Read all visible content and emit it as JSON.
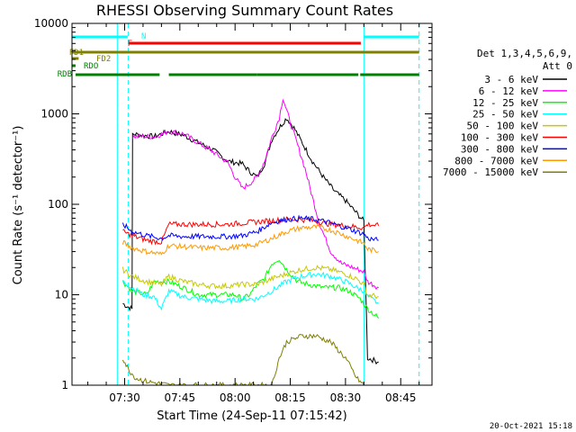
{
  "chart_data": {
    "type": "line",
    "title": "RHESSI Observing Summary Count Rates",
    "xlabel": "Start Time (24-Sep-11 07:15:42)",
    "ylabel": "Count Rate (s⁻¹ detector⁻¹)",
    "yscale": "log",
    "ylim": [
      1,
      10000
    ],
    "xlim": [
      "07:15:42",
      "08:53:30"
    ],
    "x_ticks": [
      "07:30",
      "07:45",
      "08:00",
      "08:15",
      "08:30",
      "08:45"
    ],
    "y_ticks": [
      "1",
      "10",
      "100",
      "1000",
      "10000"
    ],
    "detector_info": [
      "Det 1,3,4,5,6,9,",
      "Att 0"
    ],
    "timestamp": "20-Oct-2021 15:18",
    "series": [
      {
        "name": "3 - 6 keV",
        "color": "#000000",
        "points": [
          [
            "07:29:30",
            8
          ],
          [
            "07:30:30",
            7.5
          ],
          [
            "07:32:00",
            7
          ],
          [
            "07:32:10",
            600
          ],
          [
            "07:38:00",
            560
          ],
          [
            "07:42:00",
            640
          ],
          [
            "07:46:00",
            580
          ],
          [
            "07:50:00",
            480
          ],
          [
            "07:54:00",
            400
          ],
          [
            "07:58:00",
            300
          ],
          [
            "08:02:00",
            280
          ],
          [
            "08:04:00",
            230
          ],
          [
            "08:06:00",
            200
          ],
          [
            "08:08:00",
            280
          ],
          [
            "08:10:00",
            520
          ],
          [
            "08:12:00",
            700
          ],
          [
            "08:14:00",
            900
          ],
          [
            "08:16:00",
            700
          ],
          [
            "08:18:00",
            500
          ],
          [
            "08:21:00",
            300
          ],
          [
            "08:24:00",
            200
          ],
          [
            "08:27:00",
            140
          ],
          [
            "08:30:00",
            110
          ],
          [
            "08:33:00",
            80
          ],
          [
            "08:35:00",
            65
          ],
          [
            "08:36:00",
            2
          ],
          [
            "08:39:00",
            1.8
          ]
        ]
      },
      {
        "name": "6 - 12 keV",
        "color": "#ff00ff",
        "points": [
          [
            "07:32:10",
            560
          ],
          [
            "07:38:00",
            560
          ],
          [
            "07:42:00",
            640
          ],
          [
            "07:46:00",
            600
          ],
          [
            "07:50:00",
            480
          ],
          [
            "07:54:00",
            380
          ],
          [
            "07:58:00",
            290
          ],
          [
            "08:00:00",
            200
          ],
          [
            "08:02:00",
            150
          ],
          [
            "08:04:00",
            170
          ],
          [
            "08:06:00",
            200
          ],
          [
            "08:08:00",
            300
          ],
          [
            "08:10:00",
            550
          ],
          [
            "08:12:00",
            900
          ],
          [
            "08:13:00",
            1500
          ],
          [
            "08:15:00",
            800
          ],
          [
            "08:17:00",
            450
          ],
          [
            "08:19:00",
            250
          ],
          [
            "08:21:00",
            120
          ],
          [
            "08:23:00",
            60
          ],
          [
            "08:26:00",
            30
          ],
          [
            "08:29:00",
            22
          ],
          [
            "08:32:00",
            20
          ],
          [
            "08:35:00",
            18
          ],
          [
            "08:36:00",
            14
          ],
          [
            "08:39:00",
            12
          ]
        ]
      },
      {
        "name": "12 - 25 keV",
        "color": "#00ff00",
        "points": [
          [
            "07:29:30",
            14
          ],
          [
            "07:32:00",
            11
          ],
          [
            "07:36:00",
            10
          ],
          [
            "07:38:00",
            14
          ],
          [
            "07:42:00",
            14
          ],
          [
            "07:46:00",
            12
          ],
          [
            "07:50:00",
            10
          ],
          [
            "07:54:00",
            10
          ],
          [
            "07:58:00",
            10
          ],
          [
            "08:00:00",
            10
          ],
          [
            "08:02:00",
            9
          ],
          [
            "08:04:00",
            10
          ],
          [
            "08:06:00",
            13
          ],
          [
            "08:08:00",
            15
          ],
          [
            "08:10:00",
            22
          ],
          [
            "08:12:00",
            25
          ],
          [
            "08:14:00",
            19
          ],
          [
            "08:17:00",
            14
          ],
          [
            "08:20:00",
            13
          ],
          [
            "08:24:00",
            12
          ],
          [
            "08:28:00",
            12
          ],
          [
            "08:31:00",
            11
          ],
          [
            "08:34:00",
            9
          ],
          [
            "08:36:00",
            7
          ],
          [
            "08:39:00",
            5.5
          ]
        ]
      },
      {
        "name": "25 - 50 keV",
        "color": "#00ffff",
        "points": [
          [
            "07:29:30",
            14
          ],
          [
            "07:32:00",
            12
          ],
          [
            "07:35:00",
            10
          ],
          [
            "07:38:00",
            9.5
          ],
          [
            "07:40:00",
            7
          ],
          [
            "07:42:00",
            11
          ],
          [
            "07:46:00",
            9.5
          ],
          [
            "07:50:00",
            9
          ],
          [
            "07:54:00",
            8.5
          ],
          [
            "07:58:00",
            8.5
          ],
          [
            "08:02:00",
            9
          ],
          [
            "08:06:00",
            9
          ],
          [
            "08:10:00",
            11
          ],
          [
            "08:14:00",
            14
          ],
          [
            "08:18:00",
            16
          ],
          [
            "08:22:00",
            17
          ],
          [
            "08:26:00",
            16
          ],
          [
            "08:30:00",
            14
          ],
          [
            "08:33:00",
            12
          ],
          [
            "08:35:00",
            11
          ],
          [
            "08:36:00",
            9.5
          ],
          [
            "08:39:00",
            8
          ]
        ]
      },
      {
        "name": "50 - 100 keV",
        "color": "#c8c800",
        "points": [
          [
            "07:29:30",
            19
          ],
          [
            "07:32:00",
            16
          ],
          [
            "07:36:00",
            14
          ],
          [
            "07:40:00",
            13
          ],
          [
            "07:42:00",
            16
          ],
          [
            "07:46:00",
            14
          ],
          [
            "07:50:00",
            13
          ],
          [
            "07:54:00",
            12.5
          ],
          [
            "07:58:00",
            12.5
          ],
          [
            "08:02:00",
            13
          ],
          [
            "08:06:00",
            13
          ],
          [
            "08:10:00",
            15
          ],
          [
            "08:14:00",
            17
          ],
          [
            "08:18:00",
            19
          ],
          [
            "08:22:00",
            20
          ],
          [
            "08:26:00",
            19
          ],
          [
            "08:30:00",
            17
          ],
          [
            "08:33:00",
            15
          ],
          [
            "08:35:00",
            13
          ],
          [
            "08:36:00",
            10
          ],
          [
            "08:39:00",
            9.5
          ]
        ]
      },
      {
        "name": "100 - 300 keV",
        "color": "#ff0000",
        "points": [
          [
            "07:29:30",
            50
          ],
          [
            "07:32:00",
            45
          ],
          [
            "07:36:00",
            40
          ],
          [
            "07:40:00",
            38
          ],
          [
            "07:42:00",
            60
          ],
          [
            "07:46:00",
            60
          ],
          [
            "07:50:00",
            60
          ],
          [
            "07:54:00",
            60
          ],
          [
            "07:58:00",
            60
          ],
          [
            "08:02:00",
            62
          ],
          [
            "08:06:00",
            64
          ],
          [
            "08:10:00",
            66
          ],
          [
            "08:14:00",
            68
          ],
          [
            "08:18:00",
            68
          ],
          [
            "08:22:00",
            65
          ],
          [
            "08:26:00",
            60
          ],
          [
            "08:30:00",
            58
          ],
          [
            "08:33:00",
            56
          ],
          [
            "08:35:00",
            55
          ],
          [
            "08:36:00",
            60
          ],
          [
            "08:39:00",
            58
          ]
        ]
      },
      {
        "name": "300 - 800 keV",
        "color": "#0000ff",
        "points": [
          [
            "07:29:30",
            60
          ],
          [
            "07:32:00",
            50
          ],
          [
            "07:36:00",
            45
          ],
          [
            "07:40:00",
            42
          ],
          [
            "07:42:00",
            45
          ],
          [
            "07:46:00",
            44
          ],
          [
            "07:50:00",
            44
          ],
          [
            "07:54:00",
            44
          ],
          [
            "07:58:00",
            44
          ],
          [
            "08:02:00",
            45
          ],
          [
            "08:06:00",
            50
          ],
          [
            "08:10:00",
            63
          ],
          [
            "08:14:00",
            68
          ],
          [
            "08:18:00",
            70
          ],
          [
            "08:22:00",
            68
          ],
          [
            "08:26:00",
            62
          ],
          [
            "08:30:00",
            55
          ],
          [
            "08:33:00",
            50
          ],
          [
            "08:35:00",
            47
          ],
          [
            "08:36:00",
            42
          ],
          [
            "08:39:00",
            40
          ]
        ]
      },
      {
        "name": "800 - 7000 keV",
        "color": "#ff9900",
        "points": [
          [
            "07:29:30",
            38
          ],
          [
            "07:32:00",
            33
          ],
          [
            "07:36:00",
            30
          ],
          [
            "07:40:00",
            28
          ],
          [
            "07:42:00",
            35
          ],
          [
            "07:46:00",
            34
          ],
          [
            "07:50:00",
            33
          ],
          [
            "07:54:00",
            33
          ],
          [
            "07:58:00",
            33
          ],
          [
            "08:02:00",
            34
          ],
          [
            "08:06:00",
            36
          ],
          [
            "08:10:00",
            42
          ],
          [
            "08:14:00",
            50
          ],
          [
            "08:18:00",
            55
          ],
          [
            "08:22:00",
            56
          ],
          [
            "08:26:00",
            52
          ],
          [
            "08:30:00",
            45
          ],
          [
            "08:33:00",
            40
          ],
          [
            "08:35:00",
            37
          ],
          [
            "08:36:00",
            32
          ],
          [
            "08:39:00",
            30
          ]
        ]
      },
      {
        "name": "7000 - 15000 keV",
        "color": "#808000",
        "points": [
          [
            "07:29:30",
            2
          ],
          [
            "07:31:00",
            1.5
          ],
          [
            "07:33:00",
            1.2
          ],
          [
            "07:36:00",
            1.1
          ],
          [
            "07:42:00",
            1
          ],
          [
            "08:10:00",
            1
          ],
          [
            "08:12:00",
            2
          ],
          [
            "08:14:00",
            3
          ],
          [
            "08:18:00",
            3.5
          ],
          [
            "08:22:00",
            3.5
          ],
          [
            "08:26:00",
            3
          ],
          [
            "08:30:00",
            2
          ],
          [
            "08:33:00",
            1.2
          ],
          [
            "08:35:00",
            1
          ]
        ]
      }
    ],
    "flag_bars": [
      {
        "label": "N",
        "color": "#00ffff",
        "segments": [
          [
            "07:15:42",
            "07:30:50"
          ],
          [
            "08:35:00",
            "08:50:00"
          ]
        ]
      },
      {
        "label": "F",
        "color": "#ff0000",
        "segments": [
          [
            "07:31:10",
            "08:34:10"
          ]
        ]
      },
      {
        "label": "FD1",
        "color": "#808000",
        "segments": [
          [
            "07:15:42",
            "08:50:00"
          ]
        ]
      },
      {
        "label": "FD2",
        "color": "#808000",
        "segments": [
          [
            "07:15:42",
            "07:17:30"
          ]
        ]
      },
      {
        "label": "RDO",
        "color": "#008000",
        "segments": [
          [
            "07:15:42",
            "07:16:40"
          ]
        ]
      },
      {
        "label": "RDB",
        "color": "#008000",
        "segments": [
          [
            "07:16:40",
            "07:39:30"
          ],
          [
            "07:42:00",
            "08:06:00"
          ],
          [
            "08:06:00",
            "08:33:30"
          ],
          [
            "08:34:00",
            "08:50:00"
          ]
        ]
      }
    ],
    "vlines_solid": [
      "07:15:42",
      "07:28:00",
      "08:35:00"
    ],
    "vlines_dashed": [
      "07:31:00",
      "08:50:00"
    ]
  }
}
